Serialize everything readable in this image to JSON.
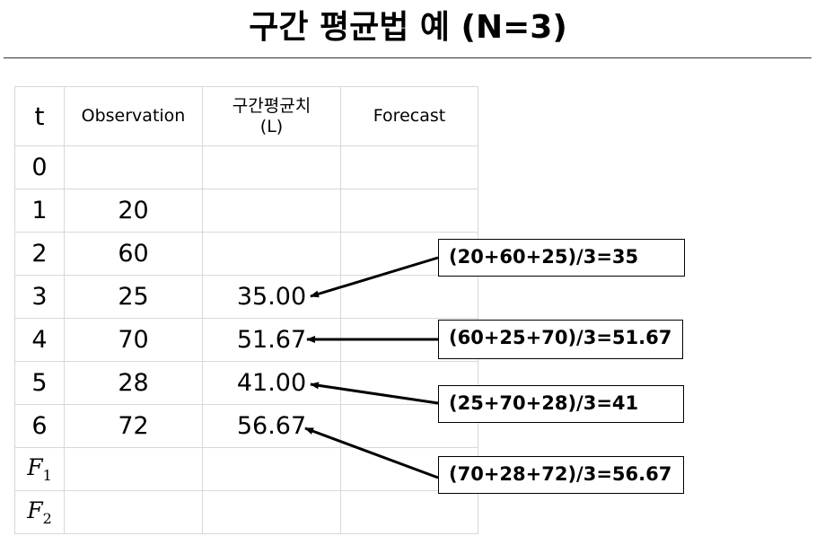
{
  "title": "구간 평균법 예 (N=3)",
  "table": {
    "headers": {
      "t": "t",
      "observation": "Observation",
      "level_line1": "구간평균치",
      "level_line2": "(L)",
      "forecast": "Forecast"
    },
    "rows": [
      {
        "t": "0",
        "observation": "",
        "level": "",
        "forecast": ""
      },
      {
        "t": "1",
        "observation": "20",
        "level": "",
        "forecast": ""
      },
      {
        "t": "2",
        "observation": "60",
        "level": "",
        "forecast": ""
      },
      {
        "t": "3",
        "observation": "25",
        "level": "35.00",
        "forecast": ""
      },
      {
        "t": "4",
        "observation": "70",
        "level": "51.67",
        "forecast": ""
      },
      {
        "t": "5",
        "observation": "28",
        "level": "41.00",
        "forecast": ""
      },
      {
        "t": "6",
        "observation": "72",
        "level": "56.67",
        "forecast": ""
      }
    ],
    "forecast_rows": [
      {
        "symbol": "F",
        "subscript": "1"
      },
      {
        "symbol": "F",
        "subscript": "2"
      }
    ]
  },
  "callouts": [
    {
      "text": "(20+60+25)/3=35"
    },
    {
      "text": "(60+25+70)/3=51.67"
    },
    {
      "text": "(25+70+28)/3=41"
    },
    {
      "text": "(70+28+72)/3=56.67"
    }
  ]
}
